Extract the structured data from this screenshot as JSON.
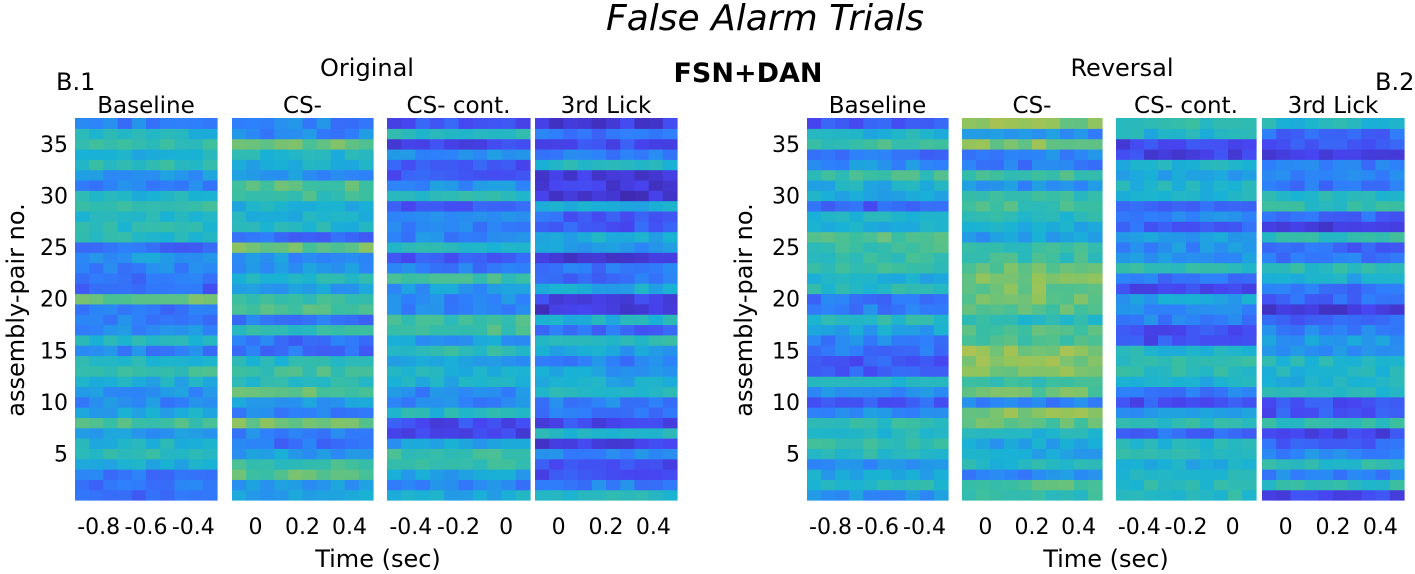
{
  "figure": {
    "title": "False Alarm Trials",
    "center_label": "FSN+DAN"
  },
  "colors": {
    "colormap": [
      "#3e26a8",
      "#4745f0",
      "#2f7ffb",
      "#19b2d4",
      "#3cbf9f",
      "#95c45a",
      "#e8bb3a",
      "#f9fb15"
    ]
  },
  "chart_data": [
    {
      "type": "heatmap",
      "panel_label": "B.1",
      "subtitle": "Original",
      "xlabel": "Time (sec)",
      "ylabel": "assembly-pair no.",
      "ylim": [
        1,
        37
      ],
      "y_ticks": [
        "35",
        "30",
        "25",
        "20",
        "15",
        "10",
        "5"
      ],
      "rows": 37,
      "segments": [
        {
          "name": "Baseline",
          "tick_labels": [
            "-0.8",
            "-0.6",
            "-0.4"
          ],
          "start_value": 0.42,
          "row_values": []
        },
        {
          "name": "CS-",
          "tick_labels": [
            "0",
            "0.2",
            "0.4"
          ],
          "start_value": 0.45,
          "row_values": []
        },
        {
          "name": "CS- cont.",
          "tick_labels": [
            "-0.4",
            "-0.2",
            "0"
          ],
          "start_value": 0.35,
          "row_values": []
        },
        {
          "name": "3rd Lick",
          "tick_labels": [
            "0",
            "0.2",
            "0.4"
          ],
          "start_value": 0.3,
          "row_values": []
        }
      ]
    },
    {
      "type": "heatmap",
      "panel_label": "B.2",
      "subtitle": "Reversal",
      "xlabel": "Time (sec)",
      "ylabel": "assembly-pair no.",
      "ylim": [
        1,
        37
      ],
      "y_ticks": [
        "35",
        "30",
        "25",
        "20",
        "15",
        "10",
        "5"
      ],
      "rows": 37,
      "segments": [
        {
          "name": "Baseline",
          "tick_labels": [
            "-0.8",
            "-0.6",
            "-0.4"
          ],
          "start_value": 0.42,
          "row_values": []
        },
        {
          "name": "CS-",
          "tick_labels": [
            "0",
            "0.2",
            "0.4"
          ],
          "start_value": 0.48,
          "row_values": []
        },
        {
          "name": "CS- cont.",
          "tick_labels": [
            "-0.4",
            "-0.2",
            "0"
          ],
          "start_value": 0.33,
          "row_values": []
        },
        {
          "name": "3rd Lick",
          "tick_labels": [
            "0",
            "0.2",
            "0.4"
          ],
          "start_value": 0.3,
          "row_values": []
        }
      ]
    }
  ]
}
